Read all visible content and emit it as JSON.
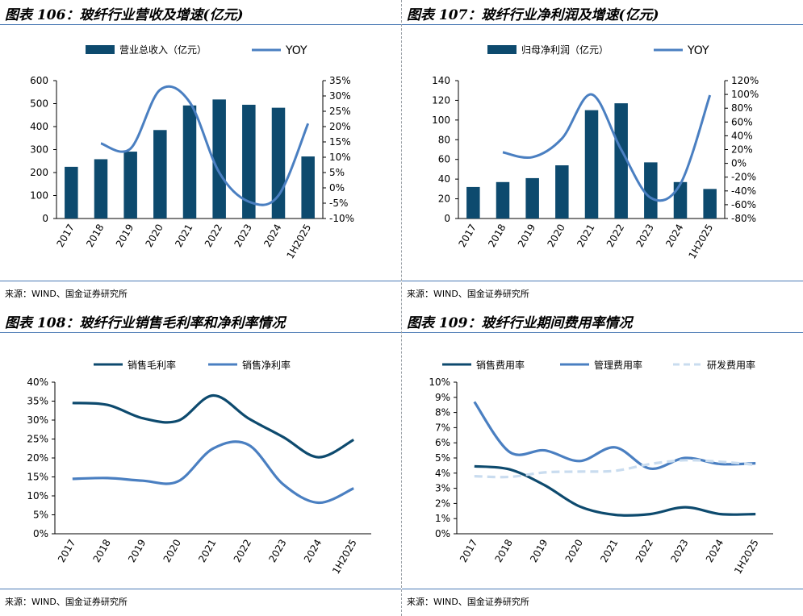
{
  "source_label": "来源：WIND、国金证券研究所",
  "chart_data": [
    {
      "id": "p1",
      "type": "bar+line",
      "title": "图表 106：玻纤行业营收及增速(亿元)",
      "categories": [
        "2017",
        "2018",
        "2019",
        "2020",
        "2021",
        "2022",
        "2023",
        "2024",
        "1H2025"
      ],
      "bar_series": {
        "name": "营业总收入（亿元）",
        "values": [
          225,
          258,
          291,
          385,
          492,
          518,
          495,
          482,
          270
        ]
      },
      "line_series": {
        "name": "YOY",
        "values": [
          null,
          14.5,
          12.8,
          32.0,
          28.0,
          5.0,
          -4.5,
          -2.5,
          21.0
        ]
      },
      "left_axis": {
        "min": 0,
        "max": 600,
        "step": 100,
        "ticks": [
          "0",
          "100",
          "200",
          "300",
          "400",
          "500",
          "600"
        ]
      },
      "right_axis": {
        "min": -10,
        "max": 35,
        "step": 5,
        "ticks": [
          "-10%",
          "-5%",
          "0%",
          "5%",
          "10%",
          "15%",
          "20%",
          "25%",
          "30%",
          "35%"
        ]
      },
      "colors": {
        "bar": "#0d4a6e",
        "line": "#4a7fc1"
      }
    },
    {
      "id": "p2",
      "type": "bar+line",
      "title": "图表 107：玻纤行业净利润及增速(亿元)",
      "categories": [
        "2017",
        "2018",
        "2019",
        "2020",
        "2021",
        "2022",
        "2023",
        "2024",
        "1H2025"
      ],
      "bar_series": {
        "name": "归母净利润（亿元）",
        "values": [
          32,
          37,
          41,
          54,
          110,
          117,
          57,
          37,
          30
        ]
      },
      "line_series": {
        "name": "YOY",
        "values": [
          null,
          16,
          9,
          36,
          100,
          20,
          -50,
          -30,
          99
        ]
      },
      "left_axis": {
        "min": 0,
        "max": 140,
        "step": 20,
        "ticks": [
          "0",
          "20",
          "40",
          "60",
          "80",
          "100",
          "120",
          "140"
        ]
      },
      "right_axis": {
        "min": -80,
        "max": 120,
        "step": 20,
        "ticks": [
          "-80%",
          "-60%",
          "-40%",
          "-20%",
          "0%",
          "20%",
          "40%",
          "60%",
          "80%",
          "100%",
          "120%"
        ]
      },
      "colors": {
        "bar": "#0d4a6e",
        "line": "#4a7fc1"
      }
    },
    {
      "id": "p3",
      "type": "line",
      "title": "图表 108：玻纤行业销售毛利率和净利率情况",
      "categories": [
        "2017",
        "2018",
        "2019",
        "2020",
        "2021",
        "2022",
        "2023",
        "2024",
        "1H2025"
      ],
      "series": [
        {
          "name": "销售毛利率",
          "values": [
            34.5,
            34.0,
            30.5,
            29.8,
            36.5,
            30.5,
            25.5,
            20.2,
            24.8
          ],
          "color": "#0d4a6e",
          "dash": false
        },
        {
          "name": "销售净利率",
          "values": [
            14.5,
            14.7,
            14.0,
            13.8,
            22.5,
            23.5,
            13.0,
            8.2,
            12.0
          ],
          "color": "#4a7fc1",
          "dash": false
        }
      ],
      "axis": {
        "min": 0,
        "max": 40,
        "step": 5,
        "ticks": [
          "0%",
          "5%",
          "10%",
          "15%",
          "20%",
          "25%",
          "30%",
          "35%",
          "40%"
        ]
      }
    },
    {
      "id": "p4",
      "type": "line",
      "title": "图表 109：玻纤行业期间费用率情况",
      "categories": [
        "2017",
        "2018",
        "2019",
        "2020",
        "2021",
        "2022",
        "2023",
        "2024",
        "1H2025"
      ],
      "series": [
        {
          "name": "销售费用率",
          "values": [
            4.45,
            4.25,
            3.2,
            1.8,
            1.25,
            1.3,
            1.75,
            1.3,
            1.3
          ],
          "color": "#0d4a6e",
          "dash": false
        },
        {
          "name": "管理费用率",
          "values": [
            8.7,
            5.4,
            5.5,
            4.8,
            5.7,
            4.3,
            5.0,
            4.6,
            4.65
          ],
          "color": "#4a7fc1",
          "dash": false
        },
        {
          "name": "研发费用率",
          "values": [
            3.8,
            3.75,
            4.05,
            4.1,
            4.15,
            4.6,
            4.85,
            4.75,
            4.55
          ],
          "color": "#c9dcef",
          "dash": true
        }
      ],
      "axis": {
        "min": 0,
        "max": 10,
        "step": 1,
        "ticks": [
          "0%",
          "1%",
          "2%",
          "3%",
          "4%",
          "5%",
          "6%",
          "7%",
          "8%",
          "9%",
          "10%"
        ]
      }
    }
  ]
}
